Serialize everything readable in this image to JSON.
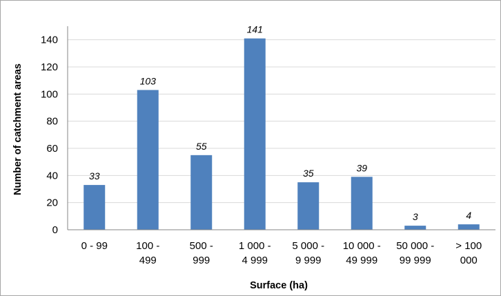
{
  "chart_data": {
    "type": "bar",
    "categories": [
      [
        "0 - 99"
      ],
      [
        "100 -",
        "499"
      ],
      [
        "500 -",
        "999"
      ],
      [
        "1 000 -",
        "4 999"
      ],
      [
        "5 000 -",
        "9 999"
      ],
      [
        "10 000 -",
        "49 999"
      ],
      [
        "50 000 -",
        "99 999"
      ],
      [
        "> 100",
        "000"
      ]
    ],
    "values": [
      33,
      103,
      55,
      141,
      35,
      39,
      3,
      4
    ],
    "title": "",
    "xlabel": "Surface (ha)",
    "ylabel": "Number of catchment areas",
    "ylim": [
      0,
      150
    ],
    "yticks": [
      0,
      20,
      40,
      60,
      80,
      100,
      120,
      140
    ],
    "grid": true,
    "legend": "none",
    "bar_color": "#4f81bd",
    "grid_color": "#d9d9d9"
  }
}
